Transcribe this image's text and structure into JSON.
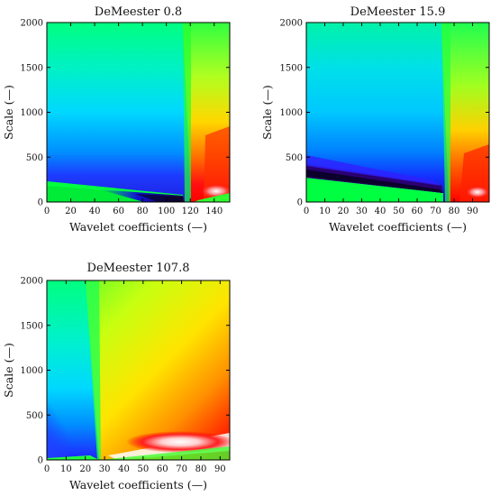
{
  "chart_data": [
    {
      "type": "heatmap",
      "title": "DeMeester 0.8",
      "xlabel": "Wavelet coefficients (—)",
      "ylabel": "Scale (—)",
      "xlim": [
        0,
        153
      ],
      "ylim": [
        0,
        2000
      ],
      "x_ticks": [
        0,
        20,
        40,
        60,
        80,
        100,
        120,
        140
      ],
      "y_ticks": [
        0,
        500,
        1000,
        1500,
        2000
      ],
      "colormap": "rainbow: black/purple (low) → blue → cyan → green → yellow → red → white (high)",
      "features": {
        "zero_crossings_x": [
          113,
          152
        ],
        "low_lobe_x": [
          0,
          113
        ],
        "high_lobe_x": [
          113,
          152
        ],
        "dark_band_x": [
          60,
          113
        ]
      }
    },
    {
      "type": "heatmap",
      "title": "DeMeester 15.9",
      "xlabel": "Wavelet coefficients (—)",
      "ylabel": "Scale (—)",
      "xlim": [
        0,
        99
      ],
      "ylim": [
        0,
        2000
      ],
      "x_ticks": [
        0,
        10,
        20,
        30,
        40,
        50,
        60,
        70,
        80,
        90
      ],
      "y_ticks": [
        0,
        500,
        1000,
        1500,
        2000
      ],
      "colormap": "rainbow: black/purple (low) → blue → cyan → green → yellow → red → white (high)",
      "features": {
        "zero_crossings_x": [
          74
        ],
        "low_lobe_x": [
          0,
          74
        ],
        "high_lobe_x": [
          74,
          99
        ],
        "dark_band_x": [
          0,
          74
        ]
      }
    },
    {
      "type": "heatmap",
      "title": "DeMeester 107.8",
      "xlabel": "Wavelet coefficients (—)",
      "ylabel": "Scale (—)",
      "xlim": [
        0,
        95
      ],
      "ylim": [
        0,
        2000
      ],
      "x_ticks": [
        0,
        10,
        20,
        30,
        40,
        50,
        60,
        70,
        80,
        90
      ],
      "y_ticks": [
        0,
        500,
        1000,
        1500,
        2000
      ],
      "colormap": "rainbow: black/purple (low) → blue → cyan → green → yellow → red → white (high)",
      "features": {
        "zero_crossings_x": [
          27
        ],
        "low_lobe_x": [
          0,
          27
        ],
        "high_lobe_x": [
          27,
          95
        ],
        "dark_band_x": [
          0,
          12
        ]
      }
    }
  ]
}
